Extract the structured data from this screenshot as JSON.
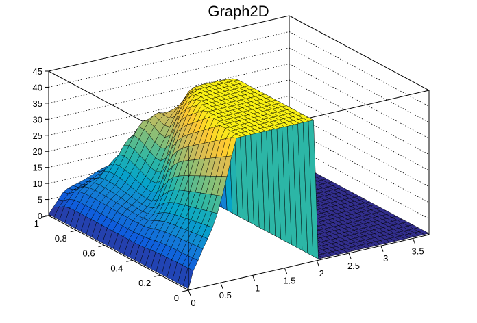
{
  "chart_data": {
    "type": "surface",
    "title": "Graph2D",
    "xlabel": "",
    "ylabel": "",
    "zlabel": "",
    "xlim": [
      0,
      3.75
    ],
    "ylim": [
      0,
      1.0
    ],
    "zlim": [
      0,
      45
    ],
    "x_ticks": [
      "0",
      "0.5",
      "1",
      "1.5",
      "2",
      "2.5",
      "3",
      "3.5"
    ],
    "y_ticks": [
      "0",
      "0.2",
      "0.4",
      "0.6",
      "0.8",
      "1"
    ],
    "z_ticks": [
      "0",
      "5",
      "10",
      "15",
      "20",
      "25",
      "30",
      "35",
      "40",
      "45"
    ],
    "grid": true,
    "colormap": [
      "#352a87",
      "#0f5cdd",
      "#1481d6",
      "#06a4ca",
      "#2eb7a4",
      "#87bf77",
      "#d1bb59",
      "#fec832",
      "#f9fb0e"
    ]
  }
}
